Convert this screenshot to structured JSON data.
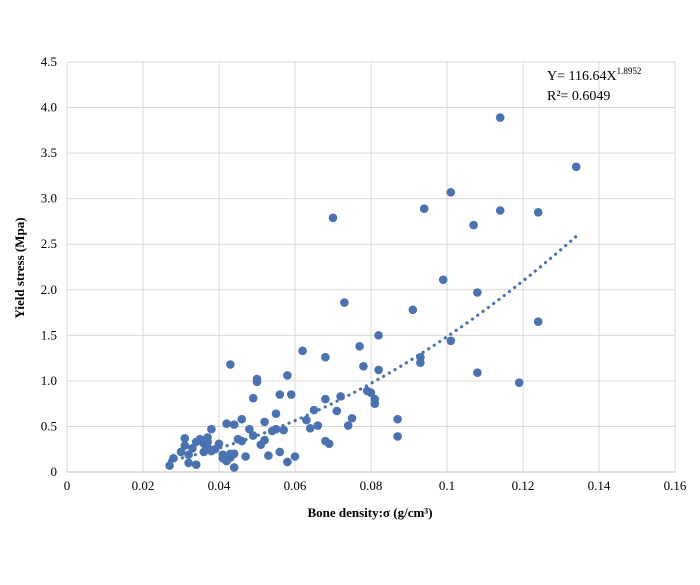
{
  "chart_data": {
    "type": "scatter",
    "xlabel": "Bone density:σ (g/cm³)",
    "ylabel": "Yield stress (Mpa)",
    "xlim": [
      0,
      0.16
    ],
    "ylim": [
      0,
      4.5
    ],
    "x_ticks": [
      "0",
      "0.02",
      "0.04",
      "0.06",
      "0.08",
      "0.1",
      "0.12",
      "0.14",
      "0.16"
    ],
    "y_ticks": [
      "0",
      "0.5",
      "1.0",
      "1.5",
      "2.0",
      "2.5",
      "3.0",
      "3.5",
      "4.0",
      "4.5"
    ],
    "grid": true,
    "marker_color": "#4a72b0",
    "trendline": {
      "type": "power",
      "coefficient": 116.64,
      "exponent": 1.8952,
      "x_range": [
        0.027,
        0.134
      ],
      "color": "#4a72b0",
      "style": "dotted",
      "equation_prefix": "Y= 116.64X",
      "equation_exponent": "1.8952",
      "r2_label": "R²= 0.6049"
    },
    "points": [
      [
        0.027,
        0.07
      ],
      [
        0.028,
        0.15
      ],
      [
        0.03,
        0.22
      ],
      [
        0.031,
        0.37
      ],
      [
        0.031,
        0.29
      ],
      [
        0.032,
        0.19
      ],
      [
        0.032,
        0.1
      ],
      [
        0.033,
        0.26
      ],
      [
        0.034,
        0.08
      ],
      [
        0.034,
        0.33
      ],
      [
        0.035,
        0.35
      ],
      [
        0.035,
        0.36
      ],
      [
        0.036,
        0.31
      ],
      [
        0.036,
        0.22
      ],
      [
        0.037,
        0.27
      ],
      [
        0.037,
        0.38
      ],
      [
        0.037,
        0.33
      ],
      [
        0.038,
        0.47
      ],
      [
        0.038,
        0.23
      ],
      [
        0.039,
        0.25
      ],
      [
        0.04,
        0.31
      ],
      [
        0.041,
        0.15
      ],
      [
        0.041,
        0.19
      ],
      [
        0.042,
        0.12
      ],
      [
        0.042,
        0.53
      ],
      [
        0.043,
        0.2
      ],
      [
        0.043,
        1.18
      ],
      [
        0.043,
        0.16
      ],
      [
        0.044,
        0.05
      ],
      [
        0.044,
        0.52
      ],
      [
        0.044,
        0.2
      ],
      [
        0.045,
        0.36
      ],
      [
        0.046,
        0.34
      ],
      [
        0.046,
        0.58
      ],
      [
        0.047,
        0.17
      ],
      [
        0.048,
        0.47
      ],
      [
        0.049,
        0.81
      ],
      [
        0.049,
        0.4
      ],
      [
        0.05,
        1.02
      ],
      [
        0.05,
        0.99
      ],
      [
        0.051,
        0.3
      ],
      [
        0.052,
        0.55
      ],
      [
        0.052,
        0.35
      ],
      [
        0.053,
        0.18
      ],
      [
        0.054,
        0.45
      ],
      [
        0.055,
        0.64
      ],
      [
        0.055,
        0.47
      ],
      [
        0.056,
        0.22
      ],
      [
        0.056,
        0.85
      ],
      [
        0.057,
        0.46
      ],
      [
        0.058,
        1.06
      ],
      [
        0.058,
        0.11
      ],
      [
        0.059,
        0.85
      ],
      [
        0.06,
        0.17
      ],
      [
        0.062,
        1.33
      ],
      [
        0.063,
        0.57
      ],
      [
        0.064,
        0.48
      ],
      [
        0.065,
        0.68
      ],
      [
        0.066,
        0.51
      ],
      [
        0.068,
        1.26
      ],
      [
        0.068,
        0.8
      ],
      [
        0.068,
        0.34
      ],
      [
        0.069,
        0.31
      ],
      [
        0.07,
        2.79
      ],
      [
        0.071,
        0.67
      ],
      [
        0.072,
        0.83
      ],
      [
        0.073,
        1.86
      ],
      [
        0.074,
        0.51
      ],
      [
        0.075,
        0.59
      ],
      [
        0.077,
        1.38
      ],
      [
        0.078,
        1.16
      ],
      [
        0.079,
        0.89
      ],
      [
        0.08,
        0.87
      ],
      [
        0.081,
        0.75
      ],
      [
        0.081,
        0.8
      ],
      [
        0.082,
        1.12
      ],
      [
        0.082,
        1.5
      ],
      [
        0.087,
        0.39
      ],
      [
        0.087,
        0.58
      ],
      [
        0.091,
        1.78
      ],
      [
        0.093,
        1.2
      ],
      [
        0.093,
        1.26
      ],
      [
        0.094,
        2.89
      ],
      [
        0.099,
        2.11
      ],
      [
        0.101,
        3.07
      ],
      [
        0.101,
        1.44
      ],
      [
        0.107,
        2.71
      ],
      [
        0.108,
        1.97
      ],
      [
        0.108,
        1.09
      ],
      [
        0.114,
        3.89
      ],
      [
        0.114,
        2.87
      ],
      [
        0.119,
        0.98
      ],
      [
        0.124,
        2.85
      ],
      [
        0.124,
        1.65
      ],
      [
        0.134,
        3.35
      ]
    ]
  }
}
